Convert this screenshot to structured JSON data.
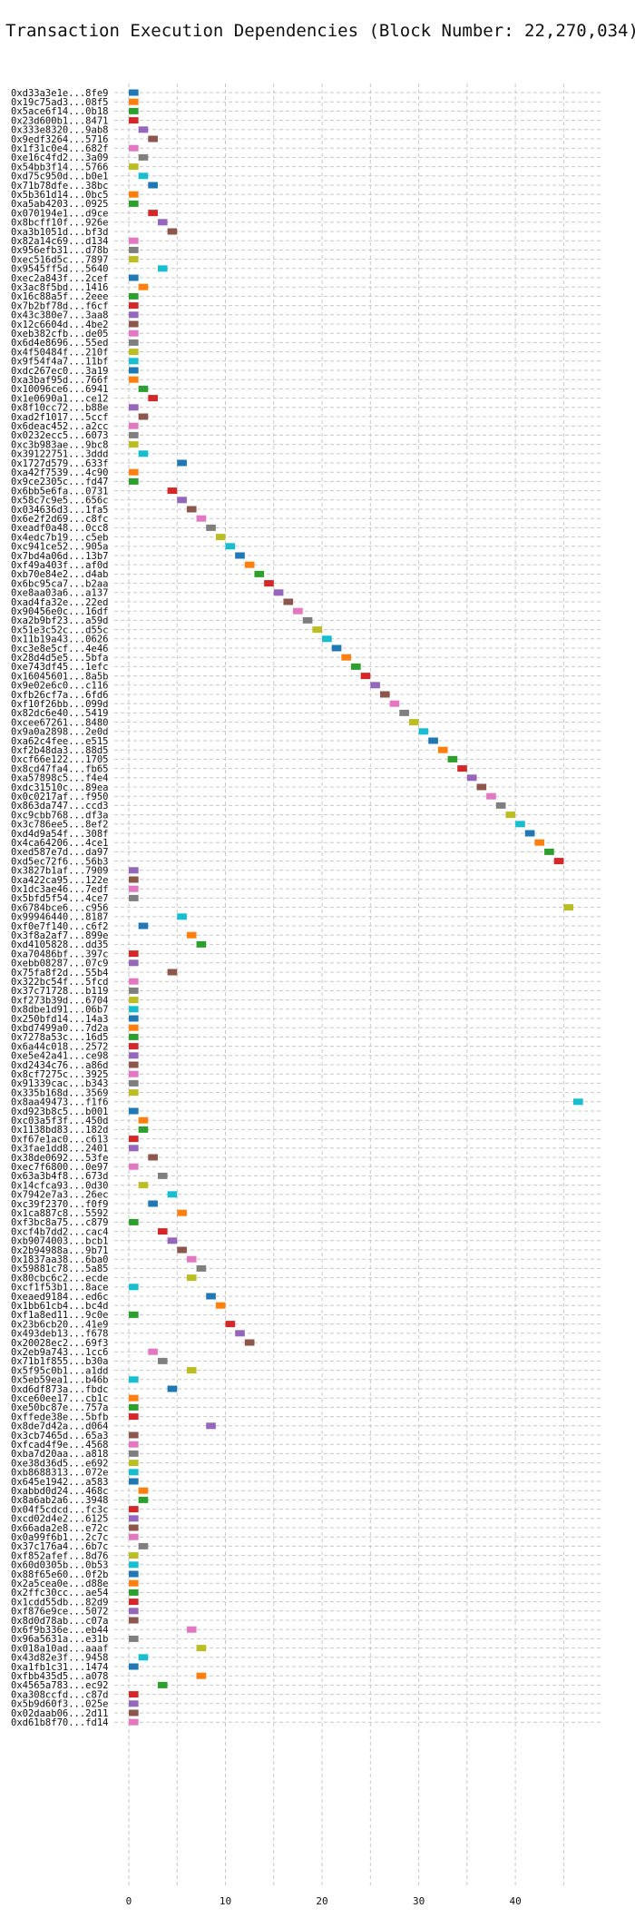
{
  "chart_data": {
    "type": "bar",
    "orientation": "horizontal",
    "title": "Transaction Execution Dependencies (Block Number: 22,270,034)",
    "xlabel": "",
    "ylabel": "",
    "xlim": [
      -1.5,
      49
    ],
    "xticks": [
      0,
      10,
      20,
      30,
      40
    ],
    "grid": true,
    "palette": [
      "#1f77b4",
      "#ff7f0e",
      "#2ca02c",
      "#d62728",
      "#9467bd",
      "#8c564b",
      "#e377c2",
      "#7f7f7f",
      "#bcbd22",
      "#17becf"
    ],
    "categories": [
      "0xd33a3e1e...8fe9",
      "0x19c75ad3...08f5",
      "0x5ace6f14...0b18",
      "0x23d600b1...8471",
      "0x333e8320...9ab8",
      "0x9edf3264...5716",
      "0x1f31c0e4...682f",
      "0xe16c4fd2...3a09",
      "0x54bb3f14...5766",
      "0xd75c950d...b0e1",
      "0x71b78dfe...38bc",
      "0x5b361d14...0bc5",
      "0xa5ab4203...0925",
      "0x070194e1...d9ce",
      "0x8bcff10f...926e",
      "0xa3b1051d...bf3d",
      "0x82a14c69...d134",
      "0x956efb31...d78b",
      "0xec516d5c...7897",
      "0x9545ff5d...5640",
      "0xec2a843f...2cef",
      "0x3ac8f5bd...1416",
      "0x16c88a5f...2eee",
      "0x7b2bf78d...f6cf",
      "0x43c380e7...3aa8",
      "0x12c6604d...4be2",
      "0xeb382cfb...de05",
      "0x6d4e8696...55ed",
      "0x4f50484f...210f",
      "0x9f54f4a7...11bf",
      "0xdc267ec0...3a19",
      "0xa3baf95d...766f",
      "0x10096ce6...6941",
      "0x1e0690a1...ce12",
      "0x8f10cc72...b88e",
      "0xad2f1017...5ccf",
      "0x6deac452...a2cc",
      "0x0232ecc5...6073",
      "0xc3b983ae...9bc8",
      "0x39122751...3ddd",
      "0x1727d579...633f",
      "0xa42f7539...4c90",
      "0x9ce2305c...fd47",
      "0x6bb5e6fa...0731",
      "0x58c7c9e5...656c",
      "0x034636d3...1fa5",
      "0x6e2f2d69...c8fc",
      "0xeadf0a48...0cc8",
      "0x4edc7b19...c5eb",
      "0xc941ce52...905a",
      "0x7bd4a06d...13b7",
      "0xf49a403f...af0d",
      "0xb70e84e2...d4ab",
      "0x6bc95ca7...b2aa",
      "0xe8aa03a6...a137",
      "0xad4fa32e...22ed",
      "0x90456e0c...16df",
      "0xa2b9bf23...a59d",
      "0x51e3c52c...d55c",
      "0x11b19a43...0626",
      "0xc3e8e5cf...4e46",
      "0x28d4d5e5...5bfa",
      "0xe743df45...1efc",
      "0x16045601...8a5b",
      "0x9e02e6c0...c116",
      "0xfb26cf7a...6fd6",
      "0xf10f26bb...099d",
      "0x82dc6e40...5419",
      "0xcee67261...8480",
      "0x9a0a2898...2e0d",
      "0xa62c4fee...e515",
      "0xf2b48da3...88d5",
      "0xcf66e122...1705",
      "0x8cd47fa4...fb65",
      "0xa57898c5...f4e4",
      "0xdc31510c...89ea",
      "0x0c0217af...f950",
      "0x863da747...ccd3",
      "0xc9cbb768...df3a",
      "0x3c786ee5...8ef2",
      "0xd4d9a54f...308f",
      "0x4ca64206...4ce1",
      "0xed587e7d...da97",
      "0xd5ec72f6...56b3",
      "0x3827b1af...7909",
      "0xa422ca95...122e",
      "0x1dc3ae46...7edf",
      "0x5bfd5f54...4ce7",
      "0x6784bce6...c956",
      "0x99946440...8187",
      "0xf0e7f140...c6f2",
      "0x3f8a2af7...899e",
      "0xd4105828...dd35",
      "0xa70486bf...397c",
      "0xebb08287...07c9",
      "0x75fa8f2d...55b4",
      "0x322bc54f...5fcd",
      "0x37c71728...b119",
      "0xf273b39d...6704",
      "0x8dbe1d91...06b7",
      "0x250bfd14...14a3",
      "0xbd7499a0...7d2a",
      "0x7278a53c...16d5",
      "0x6a44c018...2572",
      "0xe5e42a41...ce98",
      "0xd2434c76...a86d",
      "0x8cf7275c...3925",
      "0x91339cac...b343",
      "0x335b168d...3569",
      "0x8aa49473...f1f6",
      "0xd923b8c5...b001",
      "0xc03a5f3f...450d",
      "0x1138bd83...182d",
      "0xf67e1ac0...c613",
      "0x3fae1dd8...2401",
      "0x38de0692...53fe",
      "0xec7f6800...0e97",
      "0x63a3b4f8...673d",
      "0x14cfca93...0d30",
      "0x7942e7a3...26ec",
      "0xc39f2370...f0f9",
      "0x1ca887c8...5592",
      "0xf3bc8a75...c879",
      "0xcf4b7dd2...cac4",
      "0xb9074003...bcb1",
      "0x2b94988a...9b71",
      "0x1837aa38...6ba0",
      "0x59881c78...5a85",
      "0x80cbc6c2...ecde",
      "0xcf1f53b1...8ace",
      "0xeaed9184...ed6c",
      "0x1bb61cb4...bc4d",
      "0xf1a8ed11...9c0e",
      "0x23b6cb20...41e9",
      "0x493deb13...f678",
      "0x20028ec2...69f3",
      "0x2eb9a743...1cc6",
      "0x71b1f855...b30a",
      "0x5f95c0b1...a1dd",
      "0x5eb59ea1...b46b",
      "0xd6df873a...fbdc",
      "0xce60ee17...cb1c",
      "0xe50bc87e...757a",
      "0xffede38e...5bfb",
      "0x8de7d42a...d064",
      "0x3cb7465d...65a3",
      "0xfcad4f9e...4568",
      "0xba7d20aa...a818",
      "0xe38d36d5...e692",
      "0xb8688313...072e",
      "0x645e1942...a583",
      "0xabbd0d24...468c",
      "0x8a6ab2a6...3948",
      "0x04f5cdcd...fc3c",
      "0xcd02d4e2...6125",
      "0x66ada2e8...e72c",
      "0x0a99f6b1...2c7c",
      "0x37c176a4...6b7c",
      "0xf852afef...8d76",
      "0x60d0305b...0b53",
      "0x88f65e60...0f2b",
      "0x2a5cea0e...d88e",
      "0x2ffc30cc...ae54",
      "0x1cdd55db...82d9",
      "0xf876e9ce...5072",
      "0x8d0d78ab...c07a",
      "0x6f9b336e...eb44",
      "0x96a5631a...e31b",
      "0x018a10ad...aaaf",
      "0x43d82e3f...9458",
      "0xa1fb1c31...1474",
      "0xfbb435d5...a078",
      "0x4565a783...ec92",
      "0xa308ccfd...c87d",
      "0x5b9d60f3...025e",
      "0x02daab06...2d11",
      "0xd61b8f70...fd14"
    ],
    "values": [
      [
        0,
        1,
        0
      ],
      [
        0,
        1,
        1
      ],
      [
        0,
        1,
        2
      ],
      [
        0,
        1,
        3
      ],
      [
        1,
        2,
        4
      ],
      [
        2,
        3,
        5
      ],
      [
        0,
        1,
        6
      ],
      [
        1,
        2,
        7
      ],
      [
        0,
        1,
        8
      ],
      [
        1,
        2,
        9
      ],
      [
        2,
        3,
        0
      ],
      [
        0,
        1,
        1
      ],
      [
        0,
        1,
        2
      ],
      [
        2,
        3,
        3
      ],
      [
        3,
        4,
        4
      ],
      [
        4,
        5,
        5
      ],
      [
        0,
        1,
        6
      ],
      [
        0,
        1,
        7
      ],
      [
        0,
        1,
        8
      ],
      [
        3,
        4,
        9
      ],
      [
        0,
        1,
        0
      ],
      [
        1,
        2,
        1
      ],
      [
        0,
        1,
        2
      ],
      [
        0,
        1,
        3
      ],
      [
        0,
        1,
        4
      ],
      [
        0,
        1,
        5
      ],
      [
        0,
        1,
        6
      ],
      [
        0,
        1,
        7
      ],
      [
        0,
        1,
        8
      ],
      [
        0,
        1,
        9
      ],
      [
        0,
        1,
        0
      ],
      [
        0,
        1,
        1
      ],
      [
        1,
        2,
        2
      ],
      [
        2,
        3,
        3
      ],
      [
        0,
        1,
        4
      ],
      [
        1,
        2,
        5
      ],
      [
        0,
        1,
        6
      ],
      [
        0,
        1,
        7
      ],
      [
        0,
        1,
        8
      ],
      [
        1,
        2,
        9
      ],
      [
        5,
        6,
        0
      ],
      [
        0,
        1,
        1
      ],
      [
        0,
        1,
        2
      ],
      [
        4,
        5,
        3
      ],
      [
        5,
        6,
        4
      ],
      [
        6,
        7,
        5
      ],
      [
        7,
        8,
        6
      ],
      [
        8,
        9,
        7
      ],
      [
        9,
        10,
        8
      ],
      [
        10,
        11,
        9
      ],
      [
        11,
        12,
        0
      ],
      [
        12,
        13,
        1
      ],
      [
        13,
        14,
        2
      ],
      [
        14,
        15,
        3
      ],
      [
        15,
        16,
        4
      ],
      [
        16,
        17,
        5
      ],
      [
        17,
        18,
        6
      ],
      [
        18,
        19,
        7
      ],
      [
        19,
        20,
        8
      ],
      [
        20,
        21,
        9
      ],
      [
        21,
        22,
        0
      ],
      [
        22,
        23,
        1
      ],
      [
        23,
        24,
        2
      ],
      [
        24,
        25,
        3
      ],
      [
        25,
        26,
        4
      ],
      [
        26,
        27,
        5
      ],
      [
        27,
        28,
        6
      ],
      [
        28,
        29,
        7
      ],
      [
        29,
        30,
        8
      ],
      [
        30,
        31,
        9
      ],
      [
        31,
        32,
        0
      ],
      [
        32,
        33,
        1
      ],
      [
        33,
        34,
        2
      ],
      [
        34,
        35,
        3
      ],
      [
        35,
        36,
        4
      ],
      [
        36,
        37,
        5
      ],
      [
        37,
        38,
        6
      ],
      [
        38,
        39,
        7
      ],
      [
        39,
        40,
        8
      ],
      [
        40,
        41,
        9
      ],
      [
        41,
        42,
        0
      ],
      [
        42,
        43,
        1
      ],
      [
        43,
        44,
        2
      ],
      [
        44,
        45,
        3
      ],
      [
        0,
        1,
        4
      ],
      [
        0,
        1,
        5
      ],
      [
        0,
        1,
        6
      ],
      [
        0,
        1,
        7
      ],
      [
        45,
        46,
        8
      ],
      [
        5,
        6,
        9
      ],
      [
        1,
        2,
        0
      ],
      [
        6,
        7,
        1
      ],
      [
        7,
        8,
        2
      ],
      [
        0,
        1,
        3
      ],
      [
        0,
        1,
        4
      ],
      [
        4,
        5,
        5
      ],
      [
        0,
        1,
        6
      ],
      [
        0,
        1,
        7
      ],
      [
        0,
        1,
        8
      ],
      [
        0,
        1,
        9
      ],
      [
        0,
        1,
        0
      ],
      [
        0,
        1,
        1
      ],
      [
        0,
        1,
        2
      ],
      [
        0,
        1,
        3
      ],
      [
        0,
        1,
        4
      ],
      [
        0,
        1,
        5
      ],
      [
        0,
        1,
        6
      ],
      [
        0,
        1,
        7
      ],
      [
        0,
        1,
        8
      ],
      [
        46,
        47,
        9
      ],
      [
        0,
        1,
        0
      ],
      [
        1,
        2,
        1
      ],
      [
        1,
        2,
        2
      ],
      [
        0,
        1,
        3
      ],
      [
        0,
        1,
        4
      ],
      [
        2,
        3,
        5
      ],
      [
        0,
        1,
        6
      ],
      [
        3,
        4,
        7
      ],
      [
        1,
        2,
        8
      ],
      [
        4,
        5,
        9
      ],
      [
        2,
        3,
        0
      ],
      [
        5,
        6,
        1
      ],
      [
        0,
        1,
        2
      ],
      [
        3,
        4,
        3
      ],
      [
        4,
        5,
        4
      ],
      [
        5,
        6,
        5
      ],
      [
        6,
        7,
        6
      ],
      [
        7,
        8,
        7
      ],
      [
        6,
        7,
        8
      ],
      [
        0,
        1,
        9
      ],
      [
        8,
        9,
        0
      ],
      [
        9,
        10,
        1
      ],
      [
        0,
        1,
        2
      ],
      [
        10,
        11,
        3
      ],
      [
        11,
        12,
        4
      ],
      [
        12,
        13,
        5
      ],
      [
        2,
        3,
        6
      ],
      [
        3,
        4,
        7
      ],
      [
        6,
        7,
        8
      ],
      [
        0,
        1,
        9
      ],
      [
        4,
        5,
        0
      ],
      [
        0,
        1,
        1
      ],
      [
        0,
        1,
        2
      ],
      [
        0,
        1,
        3
      ],
      [
        8,
        9,
        4
      ],
      [
        0,
        1,
        5
      ],
      [
        0,
        1,
        6
      ],
      [
        0,
        1,
        7
      ],
      [
        0,
        1,
        8
      ],
      [
        0,
        1,
        9
      ],
      [
        0,
        1,
        0
      ],
      [
        1,
        2,
        1
      ],
      [
        1,
        2,
        2
      ],
      [
        0,
        1,
        3
      ],
      [
        0,
        1,
        4
      ],
      [
        0,
        1,
        5
      ],
      [
        0,
        1,
        6
      ],
      [
        1,
        2,
        7
      ],
      [
        0,
        1,
        8
      ],
      [
        0,
        1,
        9
      ],
      [
        0,
        1,
        0
      ],
      [
        0,
        1,
        1
      ],
      [
        0,
        1,
        2
      ],
      [
        0,
        1,
        3
      ],
      [
        0,
        1,
        4
      ],
      [
        0,
        1,
        5
      ],
      [
        6,
        7,
        6
      ],
      [
        0,
        1,
        7
      ],
      [
        7,
        8,
        8
      ],
      [
        1,
        2,
        9
      ],
      [
        0,
        1,
        0
      ],
      [
        7,
        8,
        1
      ],
      [
        3,
        4,
        2
      ],
      [
        0,
        1,
        3
      ],
      [
        0,
        1,
        4
      ],
      [
        0,
        1,
        5
      ],
      [
        0,
        1,
        6
      ]
    ]
  }
}
